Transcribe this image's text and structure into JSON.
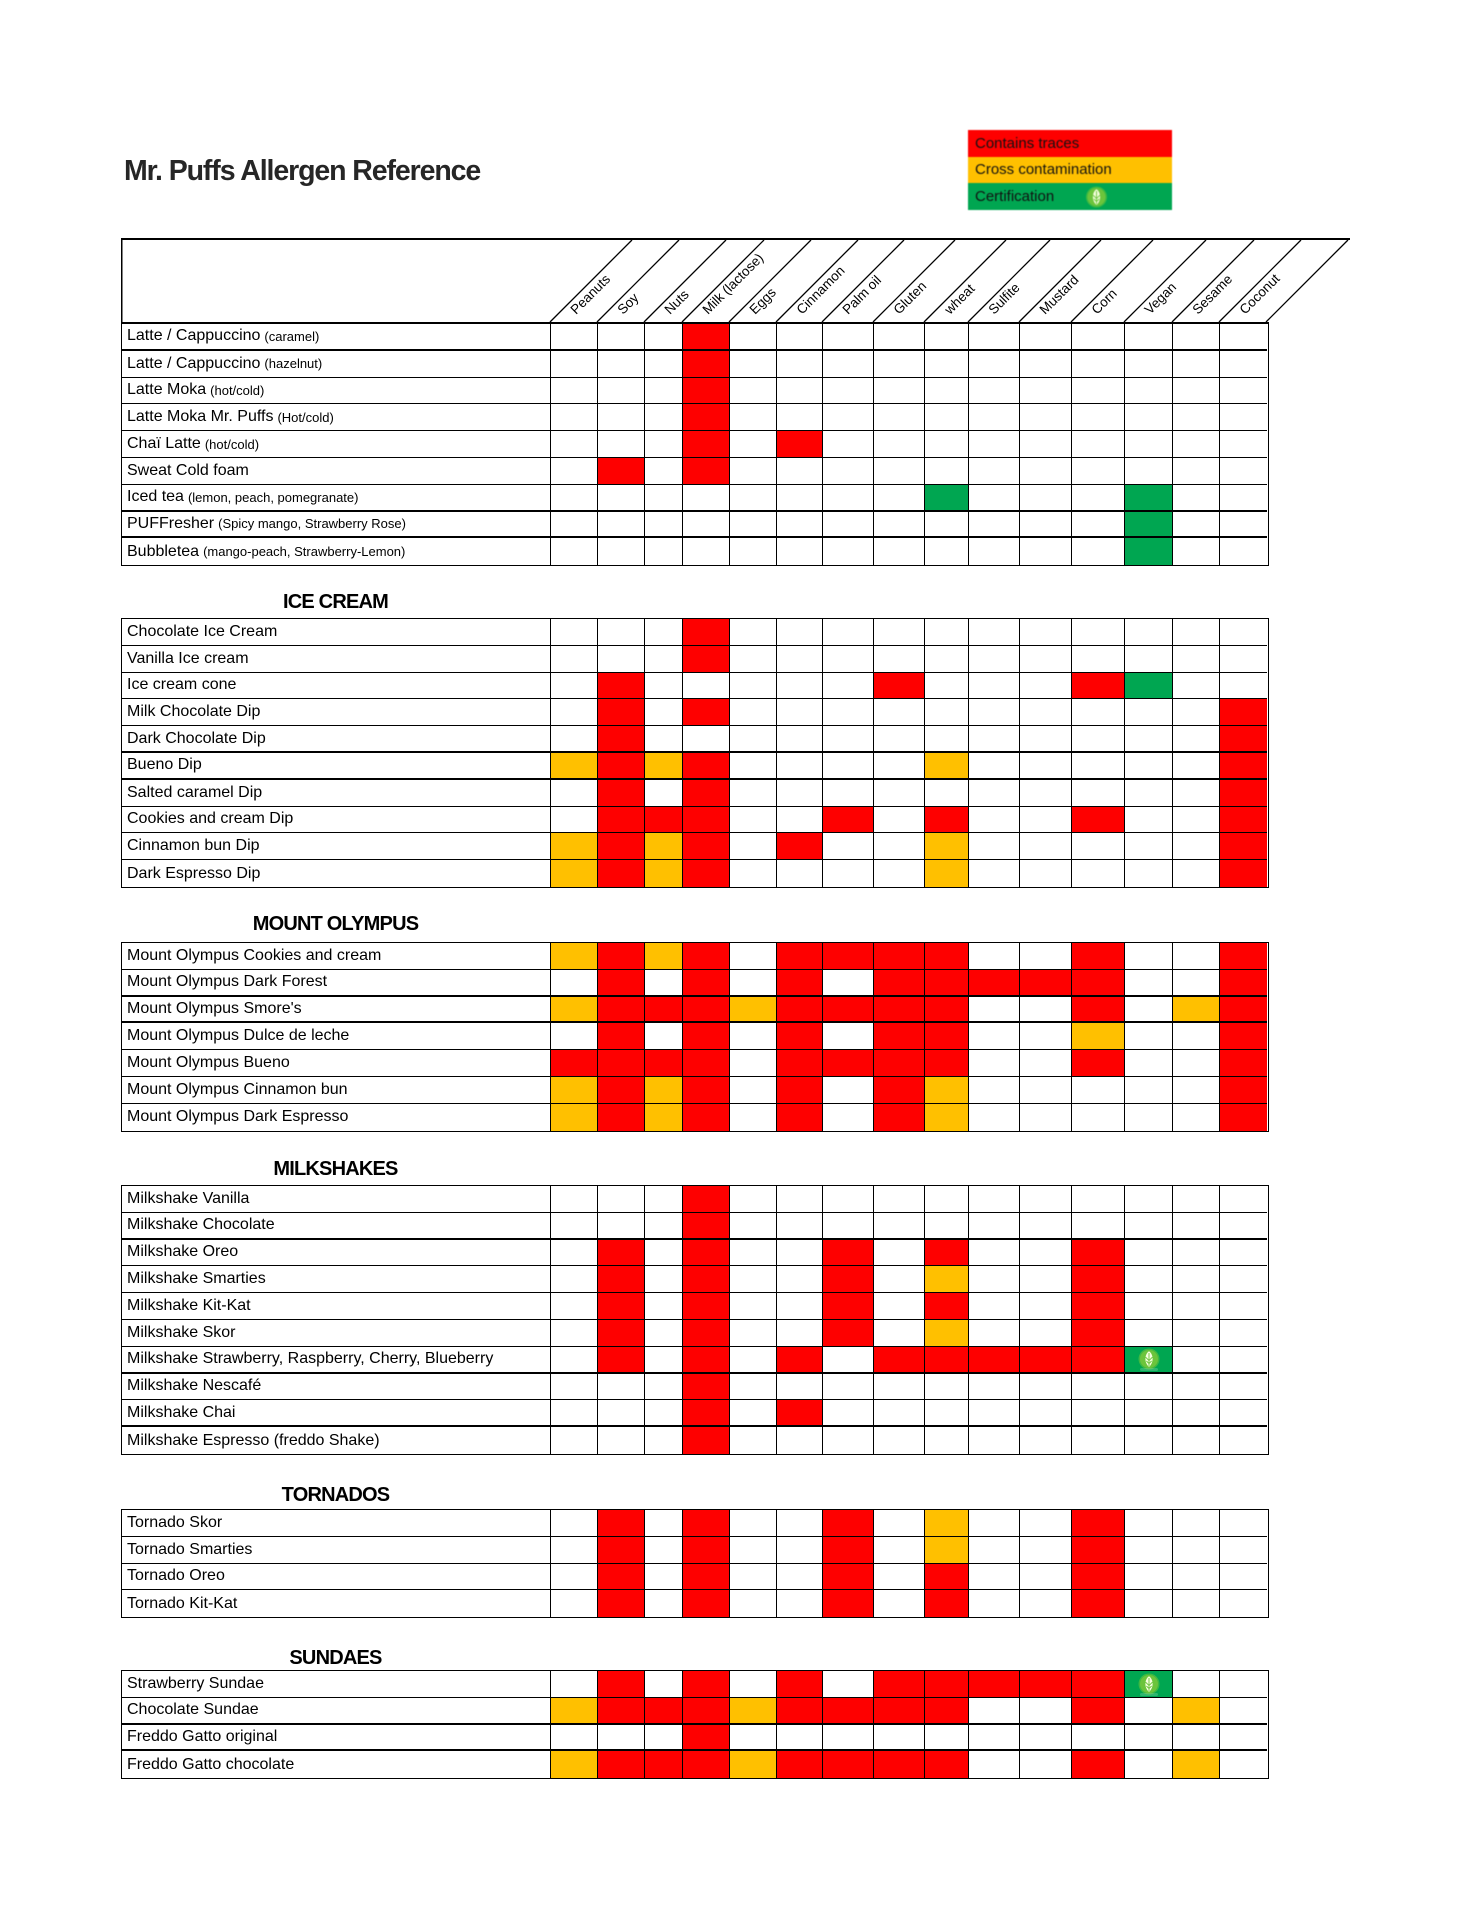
{
  "title": "Mr. Puffs Allergen Reference",
  "legend": {
    "items": [
      {
        "label": "Contains traces",
        "code": "R",
        "color": "#fe0000"
      },
      {
        "label": "Cross contamination",
        "code": "O",
        "color": "#ffc000"
      },
      {
        "label": "Certification",
        "code": "G",
        "color": "#00a651",
        "icon": "vegan-certification-icon"
      }
    ]
  },
  "allergen_columns": [
    "Peanuts",
    "Soy",
    "Nuts",
    "Milk (lactose)",
    "Eggs",
    "Cinnamon",
    "Palm oil",
    "Gluten",
    "wheat",
    "Sulfite",
    "Mustard",
    "Corn",
    "Vegan",
    "Sesame",
    "Coconut"
  ],
  "cell_codes": {
    "R": "Contains traces",
    "O": "Cross contamination",
    "G": "Certification",
    "GI": "Certification with vegan icon"
  },
  "colors": {
    "red": "#fe0000",
    "orange": "#ffc000",
    "green": "#00a651",
    "grid": "#000000",
    "icon_circle": "#5fc035",
    "icon_leaf": "#f3fcd8"
  },
  "sections": [
    {
      "title": "",
      "rows": [
        {
          "label": "Latte / Cappuccino",
          "note": "(caramel)",
          "cells": [
            "",
            "",
            "",
            "R",
            "",
            "",
            "",
            "",
            "",
            "",
            "",
            "",
            "",
            "",
            ""
          ]
        },
        {
          "label": "Latte / Cappuccino",
          "note": "(hazelnut)",
          "cells": [
            "",
            "",
            "",
            "R",
            "",
            "",
            "",
            "",
            "",
            "",
            "",
            "",
            "",
            "",
            ""
          ]
        },
        {
          "label": "Latte Moka",
          "note": "(hot/cold)",
          "cells": [
            "",
            "",
            "",
            "R",
            "",
            "",
            "",
            "",
            "",
            "",
            "",
            "",
            "",
            "",
            ""
          ]
        },
        {
          "label": "Latte Moka Mr. Puffs",
          "note": "(Hot/cold)",
          "cells": [
            "",
            "",
            "",
            "R",
            "",
            "",
            "",
            "",
            "",
            "",
            "",
            "",
            "",
            "",
            ""
          ]
        },
        {
          "label": "Chaï Latte",
          "note": "(hot/cold)",
          "cells": [
            "",
            "",
            "",
            "R",
            "",
            "R",
            "",
            "",
            "",
            "",
            "",
            "",
            "",
            "",
            ""
          ]
        },
        {
          "label": "Sweat Cold foam",
          "note": "",
          "cells": [
            "",
            "R",
            "",
            "R",
            "",
            "",
            "",
            "",
            "",
            "",
            "",
            "",
            "",
            "",
            ""
          ]
        },
        {
          "label": "Iced tea",
          "note": "(lemon, peach, pomegranate)",
          "cells": [
            "",
            "",
            "",
            "",
            "",
            "",
            "",
            "",
            "G",
            "",
            "",
            "",
            "G",
            "",
            ""
          ]
        },
        {
          "label": "PUFFresher",
          "note": "(Spicy mango, Strawberry Rose)",
          "cells": [
            "",
            "",
            "",
            "",
            "",
            "",
            "",
            "",
            "",
            "",
            "",
            "",
            "G",
            "",
            ""
          ]
        },
        {
          "label": "Bubbletea",
          "note": "(mango-peach, Strawberry-Lemon)",
          "cells": [
            "",
            "",
            "",
            "",
            "",
            "",
            "",
            "",
            "",
            "",
            "",
            "",
            "G",
            "",
            ""
          ]
        }
      ]
    },
    {
      "title": "ICE CREAM",
      "rows": [
        {
          "label": "Chocolate Ice Cream",
          "note": "",
          "cells": [
            "",
            "",
            "",
            "R",
            "",
            "",
            "",
            "",
            "",
            "",
            "",
            "",
            "",
            "",
            ""
          ]
        },
        {
          "label": "Vanilla Ice cream",
          "note": "",
          "cells": [
            "",
            "",
            "",
            "R",
            "",
            "",
            "",
            "",
            "",
            "",
            "",
            "",
            "",
            "",
            ""
          ]
        },
        {
          "label": "Ice cream cone",
          "note": "",
          "cells": [
            "",
            "R",
            "",
            "",
            "",
            "",
            "",
            "R",
            "",
            "",
            "",
            "R",
            "G",
            "",
            ""
          ]
        },
        {
          "label": "Milk Chocolate Dip",
          "note": "",
          "cells": [
            "",
            "R",
            "",
            "R",
            "",
            "",
            "",
            "",
            "",
            "",
            "",
            "",
            "",
            "",
            "R"
          ]
        },
        {
          "label": "Dark Chocolate Dip",
          "note": "",
          "cells": [
            "",
            "R",
            "",
            "",
            "",
            "",
            "",
            "",
            "",
            "",
            "",
            "",
            "",
            "",
            "R"
          ]
        },
        {
          "label": "Bueno Dip",
          "note": "",
          "cells": [
            "O",
            "R",
            "O",
            "R",
            "",
            "",
            "",
            "",
            "O",
            "",
            "",
            "",
            "",
            "",
            "R"
          ]
        },
        {
          "label": "Salted caramel Dip",
          "note": "",
          "cells": [
            "",
            "R",
            "",
            "R",
            "",
            "",
            "",
            "",
            "",
            "",
            "",
            "",
            "",
            "",
            "R"
          ]
        },
        {
          "label": "Cookies and cream Dip",
          "note": "",
          "cells": [
            "",
            "R",
            "R",
            "R",
            "",
            "",
            "R",
            "",
            "R",
            "",
            "",
            "R",
            "",
            "",
            "R"
          ]
        },
        {
          "label": "Cinnamon bun Dip",
          "note": "",
          "cells": [
            "O",
            "R",
            "O",
            "R",
            "",
            "R",
            "",
            "",
            "O",
            "",
            "",
            "",
            "",
            "",
            "R"
          ]
        },
        {
          "label": "Dark Espresso Dip",
          "note": "",
          "cells": [
            "O",
            "R",
            "O",
            "R",
            "",
            "",
            "",
            "",
            "O",
            "",
            "",
            "",
            "",
            "",
            "R"
          ]
        }
      ]
    },
    {
      "title": "MOUNT OLYMPUS",
      "rows": [
        {
          "label": "Mount Olympus Cookies and cream",
          "note": "",
          "cells": [
            "O",
            "R",
            "O",
            "R",
            "",
            "R",
            "R",
            "R",
            "R",
            "",
            "",
            "R",
            "",
            "",
            "R"
          ]
        },
        {
          "label": "Mount Olympus Dark Forest",
          "note": "",
          "cells": [
            "",
            "R",
            "",
            "R",
            "",
            "R",
            "",
            "R",
            "R",
            "R",
            "R",
            "R",
            "",
            "",
            "R"
          ]
        },
        {
          "label": "Mount Olympus Smore's",
          "note": "",
          "cells": [
            "O",
            "R",
            "R",
            "R",
            "O",
            "R",
            "R",
            "R",
            "R",
            "",
            "",
            "R",
            "",
            "O",
            "R"
          ]
        },
        {
          "label": "Mount Olympus Dulce de leche",
          "note": "",
          "cells": [
            "",
            "R",
            "",
            "R",
            "",
            "R",
            "",
            "R",
            "R",
            "",
            "",
            "O",
            "",
            "",
            "R"
          ]
        },
        {
          "label": "Mount Olympus Bueno",
          "note": "",
          "cells": [
            "R",
            "R",
            "R",
            "R",
            "",
            "R",
            "R",
            "R",
            "R",
            "",
            "",
            "R",
            "",
            "",
            "R"
          ]
        },
        {
          "label": "Mount Olympus Cinnamon bun",
          "note": "",
          "cells": [
            "O",
            "R",
            "O",
            "R",
            "",
            "R",
            "",
            "R",
            "O",
            "",
            "",
            "",
            "",
            "",
            "R"
          ]
        },
        {
          "label": "Mount Olympus Dark Espresso",
          "note": "",
          "cells": [
            "O",
            "R",
            "O",
            "R",
            "",
            "R",
            "",
            "R",
            "O",
            "",
            "",
            "",
            "",
            "",
            "R"
          ]
        }
      ]
    },
    {
      "title": "MILKSHAKES",
      "rows": [
        {
          "label": "Milkshake Vanilla",
          "note": "",
          "cells": [
            "",
            "",
            "",
            "R",
            "",
            "",
            "",
            "",
            "",
            "",
            "",
            "",
            "",
            "",
            ""
          ]
        },
        {
          "label": "Milkshake Chocolate",
          "note": "",
          "cells": [
            "",
            "",
            "",
            "R",
            "",
            "",
            "",
            "",
            "",
            "",
            "",
            "",
            "",
            "",
            ""
          ]
        },
        {
          "label": "Milkshake Oreo",
          "note": "",
          "cells": [
            "",
            "R",
            "",
            "R",
            "",
            "",
            "R",
            "",
            "R",
            "",
            "",
            "R",
            "",
            "",
            ""
          ]
        },
        {
          "label": "Milkshake Smarties",
          "note": "",
          "cells": [
            "",
            "R",
            "",
            "R",
            "",
            "",
            "R",
            "",
            "O",
            "",
            "",
            "R",
            "",
            "",
            ""
          ]
        },
        {
          "label": "Milkshake Kit-Kat",
          "note": "",
          "cells": [
            "",
            "R",
            "",
            "R",
            "",
            "",
            "R",
            "",
            "R",
            "",
            "",
            "R",
            "",
            "",
            ""
          ]
        },
        {
          "label": "Milkshake Skor",
          "note": "",
          "cells": [
            "",
            "R",
            "",
            "R",
            "",
            "",
            "R",
            "",
            "O",
            "",
            "",
            "R",
            "",
            "",
            ""
          ]
        },
        {
          "label": "Milkshake Strawberry, Raspberry, Cherry, Blueberry",
          "note": "",
          "cells": [
            "",
            "R",
            "",
            "R",
            "",
            "R",
            "",
            "R",
            "R",
            "R",
            "R",
            "R",
            "GI",
            "",
            ""
          ]
        },
        {
          "label": "Milkshake Nescafé",
          "note": "",
          "cells": [
            "",
            "",
            "",
            "R",
            "",
            "",
            "",
            "",
            "",
            "",
            "",
            "",
            "",
            "",
            ""
          ]
        },
        {
          "label": "Milkshake Chai",
          "note": "",
          "cells": [
            "",
            "",
            "",
            "R",
            "",
            "R",
            "",
            "",
            "",
            "",
            "",
            "",
            "",
            "",
            ""
          ]
        },
        {
          "label": "Milkshake Espresso (freddo Shake)",
          "note": "",
          "cells": [
            "",
            "",
            "",
            "R",
            "",
            "",
            "",
            "",
            "",
            "",
            "",
            "",
            "",
            "",
            ""
          ]
        }
      ]
    },
    {
      "title": "TORNADOS",
      "rows": [
        {
          "label": "Tornado Skor",
          "note": "",
          "cells": [
            "",
            "R",
            "",
            "R",
            "",
            "",
            "R",
            "",
            "O",
            "",
            "",
            "R",
            "",
            "",
            ""
          ]
        },
        {
          "label": "Tornado Smarties",
          "note": "",
          "cells": [
            "",
            "R",
            "",
            "R",
            "",
            "",
            "R",
            "",
            "O",
            "",
            "",
            "R",
            "",
            "",
            ""
          ]
        },
        {
          "label": "Tornado Oreo",
          "note": "",
          "cells": [
            "",
            "R",
            "",
            "R",
            "",
            "",
            "R",
            "",
            "R",
            "",
            "",
            "R",
            "",
            "",
            ""
          ]
        },
        {
          "label": "Tornado Kit-Kat",
          "note": "",
          "cells": [
            "",
            "R",
            "",
            "R",
            "",
            "",
            "R",
            "",
            "R",
            "",
            "",
            "R",
            "",
            "",
            ""
          ]
        }
      ]
    },
    {
      "title": "SUNDAES",
      "rows": [
        {
          "label": "Strawberry Sundae",
          "note": "",
          "cells": [
            "",
            "R",
            "",
            "R",
            "",
            "R",
            "",
            "R",
            "R",
            "R",
            "R",
            "R",
            "GI",
            "",
            ""
          ]
        },
        {
          "label": "Chocolate Sundae",
          "note": "",
          "cells": [
            "O",
            "R",
            "R",
            "R",
            "O",
            "R",
            "R",
            "R",
            "R",
            "",
            "",
            "R",
            "",
            "O",
            ""
          ]
        },
        {
          "label": "Freddo Gatto original",
          "note": "",
          "cells": [
            "",
            "",
            "",
            "R",
            "",
            "",
            "",
            "",
            "",
            "",
            "",
            "",
            "",
            "",
            ""
          ]
        },
        {
          "label": "Freddo Gatto chocolate",
          "note": "",
          "cells": [
            "O",
            "R",
            "R",
            "R",
            "O",
            "R",
            "R",
            "R",
            "R",
            "",
            "",
            "R",
            "",
            "O",
            ""
          ]
        }
      ]
    }
  ]
}
